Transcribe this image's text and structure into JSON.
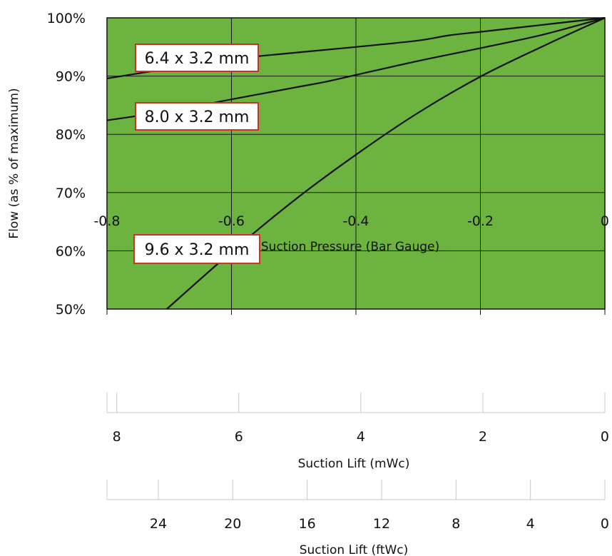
{
  "chart_data": {
    "type": "line",
    "xlabel": "Suction Pressure (Bar Gauge)",
    "ylabel": "Flow (as % of maximum)",
    "xlim": [
      -0.8,
      0
    ],
    "ylim": [
      50,
      100
    ],
    "x_ticks": [
      -0.8,
      -0.6,
      -0.4,
      -0.2,
      0
    ],
    "x_tick_labels": [
      "-0.8",
      "-0.6",
      "-0.4",
      "-0.2",
      "0"
    ],
    "y_ticks": [
      50,
      60,
      70,
      80,
      90,
      100
    ],
    "y_tick_labels": [
      "50%",
      "60%",
      "70%",
      "80%",
      "90%",
      "100%"
    ],
    "grid": true,
    "plot_background": "#6db33f",
    "callout_border_color": "#d0302b",
    "series": [
      {
        "name": "6.4 x 3.2 mm",
        "x": [
          -0.8,
          -0.7,
          -0.6,
          -0.5,
          -0.4,
          -0.3,
          -0.25,
          -0.2,
          -0.1,
          0
        ],
        "y": [
          89.6,
          91.3,
          92.9,
          94.0,
          95.0,
          96.1,
          97.0,
          97.6,
          98.8,
          100
        ]
      },
      {
        "name": "8.0 x 3.2 mm",
        "x": [
          -0.8,
          -0.7,
          -0.6,
          -0.5,
          -0.45,
          -0.4,
          -0.3,
          -0.2,
          -0.1,
          0
        ],
        "y": [
          82.4,
          84.0,
          86.0,
          88.0,
          89.0,
          90.2,
          92.6,
          94.8,
          97.1,
          100
        ]
      },
      {
        "name": "9.6 x 3.2 mm",
        "x": [
          -0.704,
          -0.6,
          -0.5,
          -0.4,
          -0.3,
          -0.2,
          -0.1,
          0
        ],
        "y": [
          50.0,
          59.8,
          68.6,
          76.5,
          83.7,
          89.9,
          95.1,
          100
        ]
      }
    ],
    "secondary_axes": [
      {
        "title": "Suction Lift (mWc)",
        "ticks": [
          8,
          6,
          4,
          2,
          0
        ],
        "tick_labels": [
          "8",
          "6",
          "4",
          "2",
          "0"
        ],
        "max": 8.16
      },
      {
        "title": "Suction Lift (ftWc)",
        "ticks": [
          24,
          20,
          16,
          12,
          8,
          4,
          0
        ],
        "tick_labels": [
          "24",
          "20",
          "16",
          "12",
          "8",
          "4",
          "0"
        ],
        "max": 26.76
      }
    ]
  }
}
